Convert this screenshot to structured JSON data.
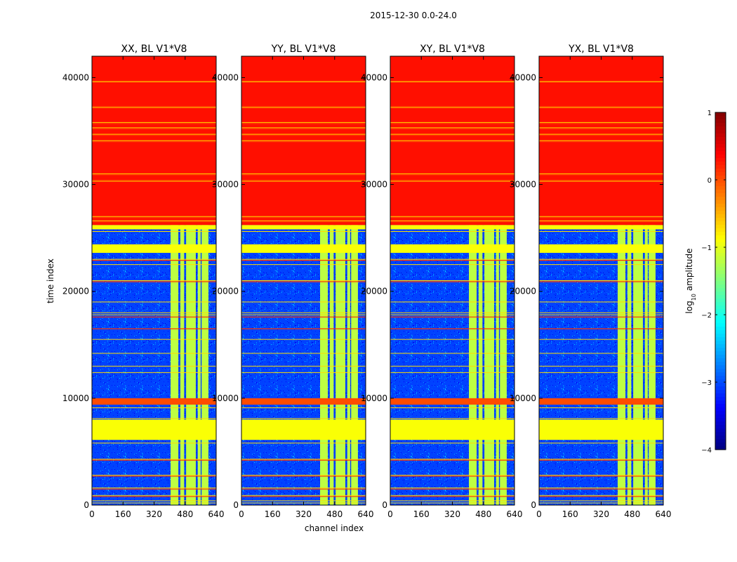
{
  "chart_data": {
    "type": "heatmap",
    "suptitle": "2015-12-30 0.0-24.0",
    "xlabel": "channel index",
    "ylabel": "time index",
    "xlim": [
      0,
      640
    ],
    "ylim": [
      0,
      42000
    ],
    "xticks": [
      0,
      160,
      320,
      480,
      640
    ],
    "yticks": [
      0,
      10000,
      20000,
      30000,
      40000
    ],
    "colormap": "jet",
    "colorbar": {
      "label_prefix": "log",
      "label_subscript": "10",
      "label_suffix": " amplitude",
      "range": [
        -4,
        1
      ],
      "ticks": [
        1,
        0,
        -1,
        -2,
        -3,
        -4
      ],
      "tick_labels": [
        "1",
        "0",
        "−1",
        "−2",
        "−3",
        "−4"
      ]
    },
    "panels": [
      {
        "title": "XX, BL V1*V8",
        "bright_bands": [
          [
            405,
            445
          ],
          [
            455,
            475
          ],
          [
            485,
            535
          ],
          [
            545,
            560
          ],
          [
            565,
            600
          ]
        ]
      },
      {
        "title": "YY, BL V1*V8",
        "bright_bands": [
          [
            405,
            445
          ],
          [
            455,
            475
          ],
          [
            485,
            535
          ],
          [
            545,
            560
          ],
          [
            565,
            600
          ]
        ]
      },
      {
        "title": "XY, BL V1*V8",
        "bright_bands": [
          [
            405,
            445
          ],
          [
            455,
            475
          ],
          [
            485,
            535
          ],
          [
            545,
            560
          ],
          [
            565,
            600
          ]
        ]
      },
      {
        "title": "YX, BL V1*V8",
        "bright_bands": [
          [
            405,
            445
          ],
          [
            455,
            475
          ],
          [
            485,
            535
          ],
          [
            545,
            560
          ],
          [
            565,
            600
          ]
        ]
      }
    ],
    "time_regions": [
      {
        "from": 26200,
        "to": 42000,
        "level": 0.3,
        "description": "flagged (constant)"
      },
      {
        "from": 25800,
        "to": 26200,
        "level": -0.9,
        "description": "flagged"
      },
      {
        "from": 23600,
        "to": 24400,
        "level": -0.9,
        "description": "flagged"
      },
      {
        "from": 6100,
        "to": 8000,
        "level": -0.9,
        "description": "flagged"
      },
      {
        "from": 9400,
        "to": 10000,
        "level": 0.0,
        "description": "high amplitude"
      }
    ],
    "hlines_orange": [
      39700,
      37300,
      35700,
      35200,
      34600,
      34000,
      30900,
      30400,
      26900,
      26500,
      22900,
      20900,
      17600,
      16500,
      4200,
      2700,
      1500,
      800
    ],
    "hlines_yellow": [
      39600,
      37200,
      35800,
      35300,
      34700,
      34100,
      31000,
      30300,
      27000,
      26600,
      25600,
      23000,
      22500,
      21000,
      19000,
      18000,
      17800,
      15500,
      14200,
      13000,
      12400,
      9100,
      8100,
      5800,
      4300,
      2800,
      1600,
      900,
      400,
      200
    ]
  }
}
